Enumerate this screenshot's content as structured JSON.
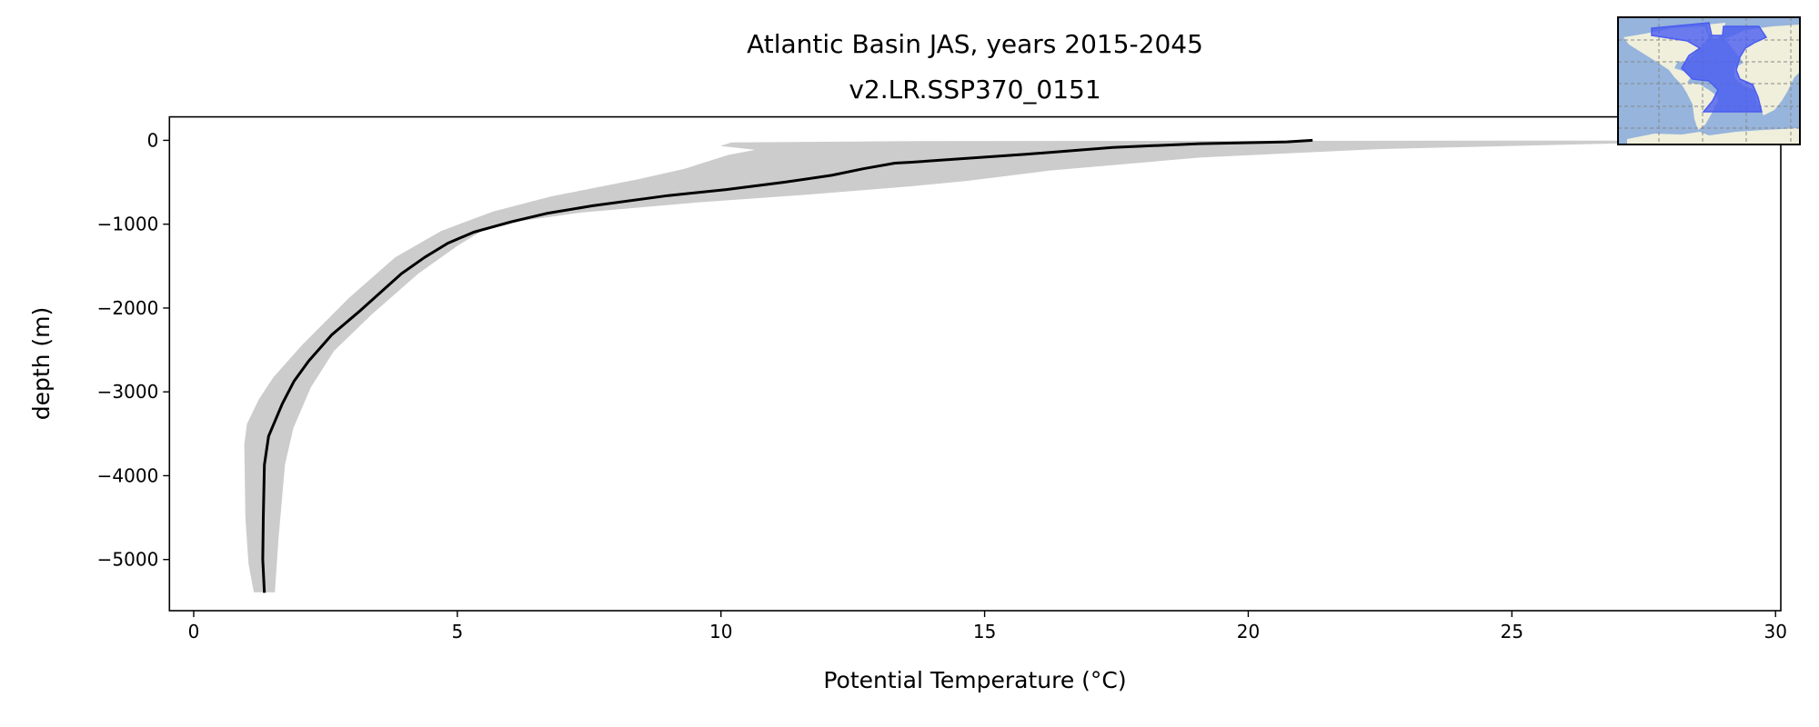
{
  "chart_data": {
    "type": "line",
    "title": [
      "Atlantic Basin JAS, years 2015-2045",
      "v2.LR.SSP370_0151"
    ],
    "xlabel": "Potential Temperature (°C)",
    "ylabel": "depth (m)",
    "xlim": [
      -0.46,
      30.1
    ],
    "ylim": [
      -5610,
      280
    ],
    "xticks": [
      0,
      5,
      10,
      15,
      20,
      25,
      30
    ],
    "xtick_labels": [
      "0",
      "5",
      "10",
      "15",
      "20",
      "25",
      "30"
    ],
    "yticks": [
      0,
      -1000,
      -2000,
      -3000,
      -4000,
      -5000
    ],
    "ytick_labels": [
      "0",
      "−1000",
      "−2000",
      "−3000",
      "−4000",
      "−5000"
    ],
    "grid": false,
    "series": [
      {
        "kind": "line",
        "color": "#000000",
        "points": [
          [
            1.34,
            -5397
          ],
          [
            1.31,
            -5000
          ],
          [
            1.32,
            -4500
          ],
          [
            1.34,
            -3870
          ],
          [
            1.42,
            -3530
          ],
          [
            1.68,
            -3142
          ],
          [
            1.9,
            -2876
          ],
          [
            2.18,
            -2633
          ],
          [
            2.62,
            -2318
          ],
          [
            3.17,
            -2026
          ],
          [
            3.94,
            -1590
          ],
          [
            4.38,
            -1396
          ],
          [
            4.82,
            -1227
          ],
          [
            5.31,
            -1096
          ],
          [
            6.03,
            -970
          ],
          [
            6.69,
            -872
          ],
          [
            7.57,
            -780
          ],
          [
            9.0,
            -659
          ],
          [
            10.1,
            -587
          ],
          [
            11.2,
            -499
          ],
          [
            12.1,
            -417
          ],
          [
            12.7,
            -339
          ],
          [
            13.3,
            -272
          ],
          [
            13.58,
            -262
          ],
          [
            15.78,
            -167
          ],
          [
            17.43,
            -84
          ],
          [
            19.08,
            -40
          ],
          [
            20.73,
            -18
          ],
          [
            21.22,
            0
          ]
        ]
      },
      {
        "kind": "range-fill",
        "color": "#cccccc",
        "lower": [
          [
            1.14,
            -5390
          ],
          [
            1.04,
            -5057
          ],
          [
            0.98,
            -4500
          ],
          [
            0.96,
            -3627
          ],
          [
            1.01,
            -3384
          ],
          [
            1.23,
            -3094
          ],
          [
            1.51,
            -2827
          ],
          [
            2.06,
            -2439
          ],
          [
            2.94,
            -1882
          ],
          [
            3.82,
            -1396
          ],
          [
            4.69,
            -1081
          ],
          [
            5.68,
            -848
          ],
          [
            6.78,
            -668
          ],
          [
            8.43,
            -465
          ],
          [
            9.31,
            -339
          ],
          [
            10.14,
            -174
          ],
          [
            10.65,
            -114
          ],
          [
            9.99,
            -67
          ],
          [
            10.2,
            -25
          ],
          [
            13.7,
            -8
          ],
          [
            30.0,
            -2
          ]
        ],
        "upper": [
          [
            30.05,
            -2
          ],
          [
            27.0,
            -38
          ],
          [
            22.4,
            -106
          ],
          [
            19.08,
            -206
          ],
          [
            16.22,
            -362
          ],
          [
            14.68,
            -483
          ],
          [
            13.58,
            -549
          ],
          [
            11.73,
            -644
          ],
          [
            9.53,
            -742
          ],
          [
            7.33,
            -862
          ],
          [
            6.23,
            -960
          ],
          [
            5.46,
            -1081
          ],
          [
            5.02,
            -1250
          ],
          [
            4.26,
            -1590
          ],
          [
            3.38,
            -2075
          ],
          [
            2.66,
            -2512
          ],
          [
            2.22,
            -2948
          ],
          [
            1.89,
            -3433
          ],
          [
            1.73,
            -3870
          ],
          [
            1.61,
            -4742
          ],
          [
            1.54,
            -5390
          ]
        ]
      }
    ],
    "inset_map": {
      "ocean_color": "#96b4dc",
      "land_color": "#efefdb",
      "region_color": "#4a5cf0",
      "region": "Atlantic Basin"
    }
  }
}
